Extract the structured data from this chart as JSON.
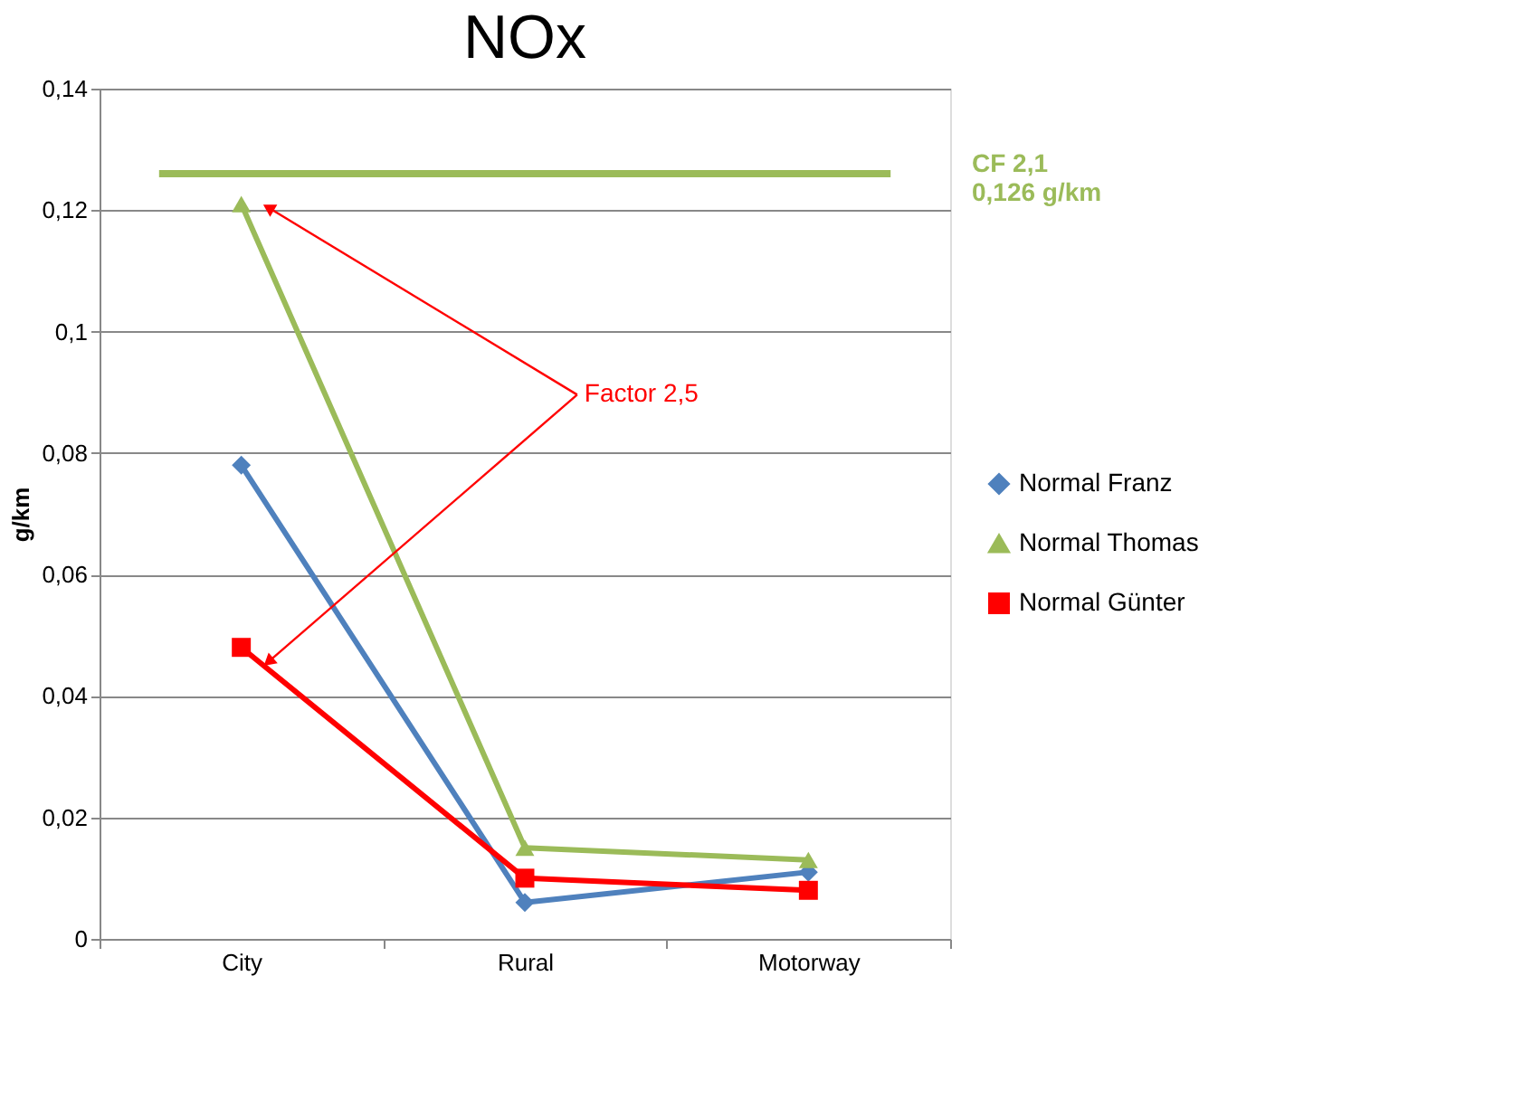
{
  "chart_data": {
    "type": "line",
    "title": "NOx",
    "ylabel": "g/km",
    "categories": [
      "City",
      "Rural",
      "Motorway"
    ],
    "series": [
      {
        "name": "Normal Franz",
        "color": "#4f81bd",
        "marker": "diamond",
        "values": [
          0.078,
          0.006,
          0.011
        ]
      },
      {
        "name": "Normal Thomas",
        "color": "#9bbb59",
        "marker": "triangle",
        "values": [
          0.121,
          0.015,
          0.013
        ]
      },
      {
        "name": "Normal Günter",
        "color": "#ff0000",
        "marker": "square",
        "values": [
          0.048,
          0.01,
          0.008
        ]
      }
    ],
    "ylim": [
      0,
      0.14
    ],
    "yticks": [
      {
        "value": 0,
        "label": "0"
      },
      {
        "value": 0.02,
        "label": "0,02"
      },
      {
        "value": 0.04,
        "label": "0,04"
      },
      {
        "value": 0.06,
        "label": "0,06"
      },
      {
        "value": 0.08,
        "label": "0,08"
      },
      {
        "value": 0.1,
        "label": "0,1"
      },
      {
        "value": 0.12,
        "label": "0,12"
      },
      {
        "value": 0.14,
        "label": "0,14"
      }
    ],
    "ref_lines": [
      {
        "axis": "y",
        "value": 0.126,
        "label": "CF 2,1\n0,126 g/km",
        "color": "#9bbb59"
      }
    ],
    "annotations": [
      "Factor 2,5"
    ],
    "grid": "y",
    "legend": "right",
    "line_style": "solid"
  }
}
